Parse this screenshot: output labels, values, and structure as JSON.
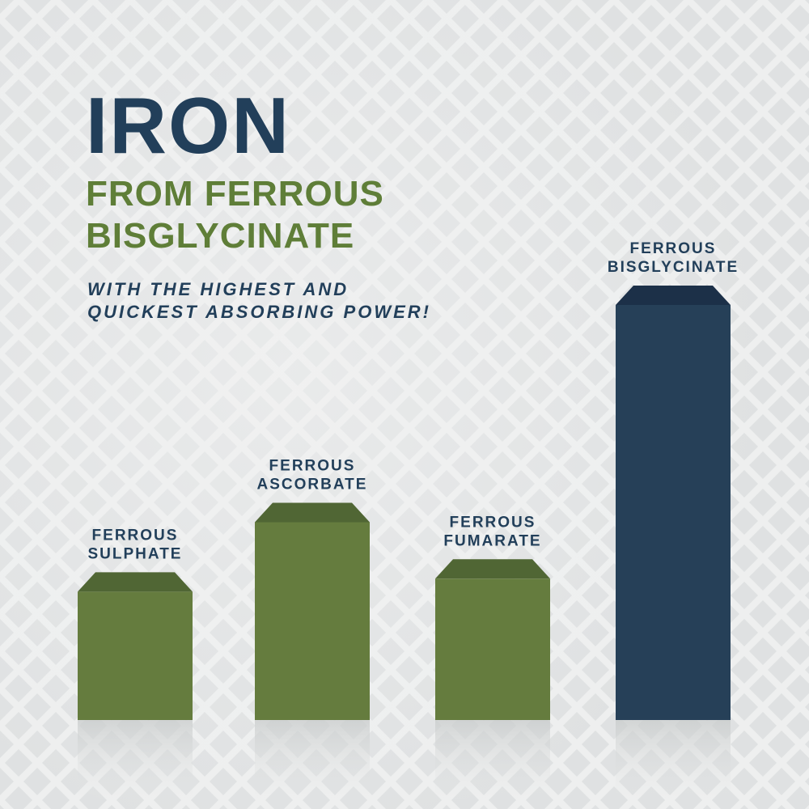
{
  "header": {
    "title": "IRON",
    "subtitle_lines": [
      "FROM FERROUS",
      "BISGLYCINATE"
    ],
    "tagline_lines": [
      "WITH THE HIGHEST AND",
      "QUICKEST ABSORBING POWER!"
    ]
  },
  "chart_data": {
    "type": "bar",
    "title": "",
    "xlabel": "",
    "ylabel": "",
    "categories": [
      [
        "FERROUS",
        "SULPHATE"
      ],
      [
        "FERROUS",
        "ASCORBATE"
      ],
      [
        "FERROUS",
        "FUMARATE"
      ],
      [
        "FERROUS",
        "BISGLYCINATE"
      ]
    ],
    "values": [
      34,
      50,
      37,
      100
    ],
    "ylim": [
      0,
      100
    ],
    "grid": false,
    "axes_shown": false,
    "colors": [
      "#657c3e",
      "#657c3e",
      "#657c3e",
      "#264058"
    ],
    "cap_colors": [
      "#506634",
      "#506634",
      "#506634",
      "#1c3048"
    ],
    "label_color": "#223f5a"
  }
}
